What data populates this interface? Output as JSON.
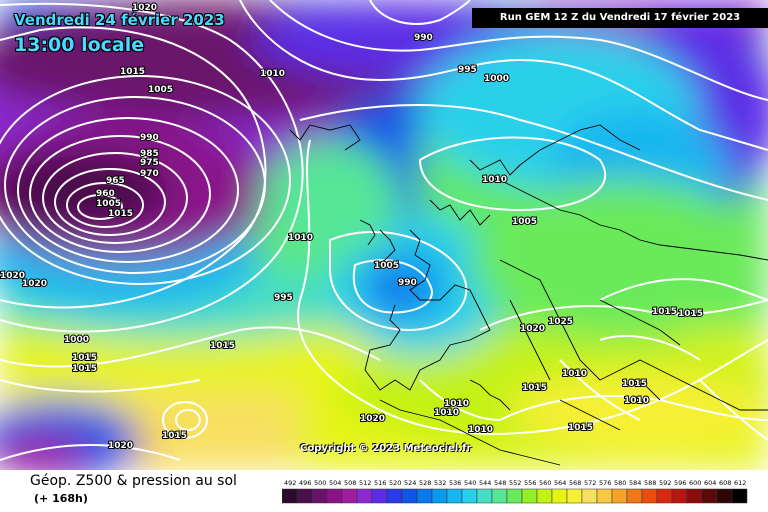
{
  "header": {
    "date_line": "Vendredi 24 février 2023",
    "time_line": "13:00 locale",
    "run_info": "Run GEM 12 Z du Vendredi 17 février 2023"
  },
  "copyright": "Copyright © 2023 Meteociel.fr",
  "footer": {
    "title": "Géop. Z500 & pression au sol",
    "subtitle": "(+ 168h)"
  },
  "legend": {
    "values": [
      "492",
      "496",
      "500",
      "504",
      "508",
      "512",
      "516",
      "520",
      "524",
      "528",
      "532",
      "536",
      "540",
      "544",
      "548",
      "552",
      "556",
      "560",
      "564",
      "568",
      "572",
      "576",
      "580",
      "584",
      "588",
      "592",
      "596",
      "600",
      "604",
      "608",
      "612"
    ],
    "colors": [
      "#2a0b2a",
      "#4a0e4a",
      "#6a126a",
      "#8a128a",
      "#a01ea0",
      "#8a2ad0",
      "#5b2ee6",
      "#2b3ae8",
      "#1256e8",
      "#0a78ee",
      "#0a9af0",
      "#16b6f0",
      "#2ad0ea",
      "#46dec4",
      "#56e696",
      "#6aea5a",
      "#94ee2a",
      "#c4f214",
      "#e6f414",
      "#f6f034",
      "#f8e060",
      "#f8c840",
      "#f4a428",
      "#f07818",
      "#ea4e10",
      "#d82a10",
      "#b81612",
      "#8a0e0e",
      "#5a0a0a",
      "#2e0606",
      "#000000"
    ]
  },
  "isobar_labels": [
    {
      "text": "1020",
      "x": 1025,
      "y": 0
    },
    {
      "text": "990",
      "x": 990,
      "y": 0
    },
    {
      "text": "1015",
      "x": 1015,
      "y": 0
    },
    {
      "text": "1010",
      "x": 1010,
      "y": 0
    },
    {
      "text": "1005",
      "x": 1005,
      "y": 0
    },
    {
      "text": "995",
      "x": 995,
      "y": 0
    },
    {
      "text": "1000",
      "x": 1000,
      "y": 0
    },
    {
      "text": "990",
      "x": 990,
      "y": 0
    },
    {
      "text": "985",
      "x": 985,
      "y": 0
    },
    {
      "text": "975",
      "x": 975,
      "y": 0
    },
    {
      "text": "970",
      "x": 970,
      "y": 0
    },
    {
      "text": "965",
      "x": 965,
      "y": 0
    },
    {
      "text": "960",
      "x": 960,
      "y": 0
    },
    {
      "text": "1005",
      "x": 1005,
      "y": 0
    },
    {
      "text": "1015",
      "x": 1015,
      "y": 0
    },
    {
      "text": "1010",
      "x": 1010,
      "y": 0
    },
    {
      "text": "1020",
      "x": 1020,
      "y": 0
    },
    {
      "text": "1020",
      "x": 1020,
      "y": 0
    },
    {
      "text": "1010",
      "x": 1010,
      "y": 0
    },
    {
      "text": "1005",
      "x": 1005,
      "y": 0
    },
    {
      "text": "1005",
      "x": 1005,
      "y": 0
    },
    {
      "text": "990",
      "x": 990,
      "y": 0
    },
    {
      "text": "995",
      "x": 995,
      "y": 0
    },
    {
      "text": "1000",
      "x": 1000,
      "y": 0
    },
    {
      "text": "1015",
      "x": 1015,
      "y": 0
    },
    {
      "text": "1015",
      "x": 1015,
      "y": 0
    },
    {
      "text": "1015",
      "x": 1015,
      "y": 0
    },
    {
      "text": "1020",
      "x": 1020,
      "y": 0
    },
    {
      "text": "1025",
      "x": 1025,
      "y": 0
    },
    {
      "text": "1010",
      "x": 1010,
      "y": 0
    },
    {
      "text": "1015",
      "x": 1015,
      "y": 0
    },
    {
      "text": "1015",
      "x": 1015,
      "y": 0
    },
    {
      "text": "1015",
      "x": 1015,
      "y": 0
    },
    {
      "text": "1015",
      "x": 1015,
      "y": 0
    },
    {
      "text": "1010",
      "x": 1010,
      "y": 0
    },
    {
      "text": "1010",
      "x": 1010,
      "y": 0
    },
    {
      "text": "1010",
      "x": 1010,
      "y": 0
    },
    {
      "text": "1020",
      "x": 1020,
      "y": 0
    },
    {
      "text": "1015",
      "x": 1015,
      "y": 0
    },
    {
      "text": "1010",
      "x": 1010,
      "y": 0
    },
    {
      "text": "1020",
      "x": 1020,
      "y": 0
    },
    {
      "text": "1015",
      "x": 1015,
      "y": 0
    }
  ]
}
